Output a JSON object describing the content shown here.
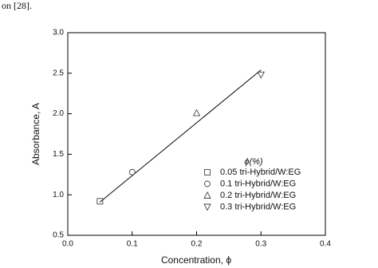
{
  "document_text": "on [28].",
  "chart_data": {
    "type": "scatter",
    "x_label": "Concentration, ϕ",
    "y_label": "Absorbance, A",
    "legend_title": "ϕ(%)",
    "legend_position": "lower right",
    "xlim": [
      0,
      0.4
    ],
    "xticks": [
      {
        "value": 0,
        "label": "0.0"
      },
      0.1,
      0.2,
      0.3,
      0.4
    ],
    "ylim": [
      0.5,
      3
    ],
    "yticks": [
      0.5,
      {
        "value": 1,
        "label": "1.0"
      },
      1.5,
      {
        "value": 2,
        "label": "2.0"
      },
      2.5,
      {
        "value": 3,
        "label": "3.0"
      }
    ],
    "series": [
      {
        "name": "0.05 tri-Hybrid/W:EG",
        "color": "#444444",
        "marker": "square",
        "x": [
          0.05
        ],
        "values": [
          0.92
        ]
      },
      {
        "name": "0.1 tri-Hybrid/W:EG",
        "color": "#444444",
        "marker": "circle",
        "x": [
          0.1
        ],
        "values": [
          1.28
        ]
      },
      {
        "name": "0.2 tri-Hybrid/W:EG",
        "color": "#444444",
        "marker": "triangle-up",
        "x": [
          0.2
        ],
        "values": [
          2.01
        ]
      },
      {
        "name": "0.3 tri-Hybrid/W:EG",
        "color": "#444444",
        "marker": "triangle-down",
        "x": [
          0.3
        ],
        "values": [
          2.48
        ]
      }
    ],
    "fit": {
      "color": "#000000",
      "x": [
        0.05,
        0.3
      ],
      "values": [
        0.91,
        2.54
      ]
    }
  }
}
